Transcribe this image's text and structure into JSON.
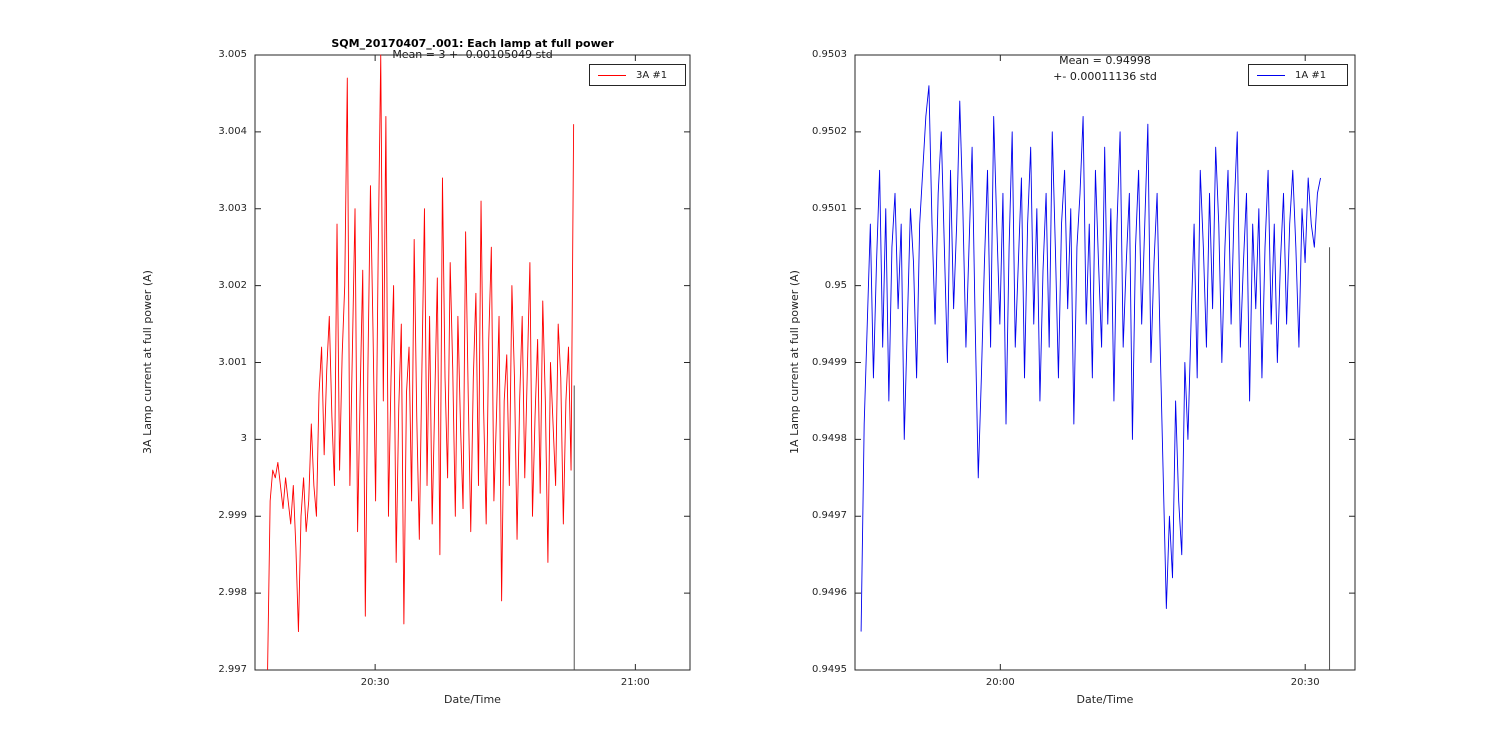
{
  "figure": {
    "background": "#ffffff"
  },
  "chart_data": [
    {
      "type": "line",
      "title": "SQM_20170407_.001: Each lamp at full power",
      "annotation": {
        "line1": "Mean = 3 +- 0.00105049 std"
      },
      "xlabel": "Date/Time",
      "ylabel": "3A Lamp current at full power (A)",
      "legend": {
        "label": "3A #1",
        "color": "#ff0000",
        "position": "top-right"
      },
      "grid": false,
      "axis": {
        "x_min": 16.15,
        "x_max": 66.3,
        "y_min": 2.997,
        "y_max": 3.005,
        "x_unit": "minutes after 20:00",
        "x_ticks": [
          {
            "v": 30,
            "label": "20:30"
          },
          {
            "v": 60,
            "label": "21:00"
          }
        ],
        "y_ticks": [
          {
            "v": 2.997,
            "label": "2.997"
          },
          {
            "v": 2.998,
            "label": "2.998"
          },
          {
            "v": 2.999,
            "label": "2.999"
          },
          {
            "v": 3.0,
            "label": "3"
          },
          {
            "v": 3.001,
            "label": "3.001"
          },
          {
            "v": 3.002,
            "label": "3.002"
          },
          {
            "v": 3.003,
            "label": "3.003"
          },
          {
            "v": 3.004,
            "label": "3.004"
          },
          {
            "v": 3.005,
            "label": "3.005"
          }
        ]
      },
      "series": [
        {
          "name": "3A #1",
          "color": "#ff0000",
          "x_start": 17.6,
          "x_step": 0.2965,
          "y_base": 3.0,
          "y_unit": 0.0001,
          "y_offsets_csv": "-30,-8,-4,-5,-3,-6,-9,-5,-8,-11,-6,-14,-25,-10,-5,-12,-8,2,-6,-10,6,12,-2,9,16,3,-6,28,-4,11,20,47,-6,12,30,-12,6,22,-23,9,33,14,-8,24,50,5,42,-10,8,20,-16,4,15,-24,6,12,-8,26,3,-13,9,30,-6,16,-11,5,21,-15,34,8,-5,23,9,-10,16,2,-9,27,6,-12,8,19,-6,31,4,-11,13,25,-8,3,16,-21,5,11,-6,20,8,-13,5,16,-5,9,23,-10,3,13,-7,18,5,-16,10,2,-6,15,8,-11,5,12,-4,41"
        },
        {
          "name": "end-marker",
          "color": "#404040",
          "points": [
            [
              52.95,
              2.997
            ],
            [
              52.95,
              3.0007
            ]
          ]
        }
      ]
    },
    {
      "type": "line",
      "annotation": {
        "line1": "Mean = 0.94998",
        "line2": "+- 0.00011136 std"
      },
      "xlabel": "Date/Time",
      "ylabel": "1A Lamp current at full power (A)",
      "legend": {
        "label": "1A #1",
        "color": "#0000ee",
        "position": "top-right"
      },
      "grid": false,
      "axis": {
        "x_min": 45.7,
        "x_max": 94.9,
        "y_min": 0.9495,
        "y_max": 0.9503,
        "x_unit": "minutes after 19:00",
        "x_ticks": [
          {
            "v": 60,
            "label": "20:00"
          },
          {
            "v": 90,
            "label": "20:30"
          }
        ],
        "y_ticks": [
          {
            "v": 0.9495,
            "label": "0.9495"
          },
          {
            "v": 0.9496,
            "label": "0.9496"
          },
          {
            "v": 0.9497,
            "label": "0.9497"
          },
          {
            "v": 0.9498,
            "label": "0.9498"
          },
          {
            "v": 0.9499,
            "label": "0.9499"
          },
          {
            "v": 0.95,
            "label": "0.95"
          },
          {
            "v": 0.9501,
            "label": "0.9501"
          },
          {
            "v": 0.9502,
            "label": "0.9502"
          },
          {
            "v": 0.9503,
            "label": "0.9503"
          }
        ]
      },
      "series": [
        {
          "name": "1A #1",
          "color": "#0000ee",
          "x_start": 46.3,
          "x_step": 0.3034,
          "y_base": 0.95,
          "y_unit": 1e-05,
          "y_offsets_csv": "-45,-18,-5,8,-12,3,15,-8,10,-15,5,12,-3,8,-20,-5,10,3,-12,8,15,22,26,8,-5,12,20,5,-10,15,-3,8,24,10,-8,5,18,-5,-25,-12,3,15,-8,22,8,-5,12,-18,5,20,-8,3,14,-12,8,18,-5,10,-15,2,12,-8,20,5,-12,8,15,-3,10,-18,5,12,22,-5,8,-12,15,3,-8,18,-5,10,-15,8,20,-8,3,12,-20,5,15,-5,8,21,-10,3,12,-8,-25,-42,-30,-38,-15,-28,-35,-10,-20,-5,8,-12,15,5,-8,12,-3,18,8,-10,5,15,-5,10,20,-8,3,12,-15,8,-3,10,-12,5,15,-5,8,-10,3,12,-5,8,15,5,-8,10,3,14,8,5,12,14"
        },
        {
          "name": "end-marker",
          "color": "#404040",
          "points": [
            [
              92.4,
              0.9495
            ],
            [
              92.4,
              0.95005
            ]
          ]
        }
      ]
    }
  ]
}
